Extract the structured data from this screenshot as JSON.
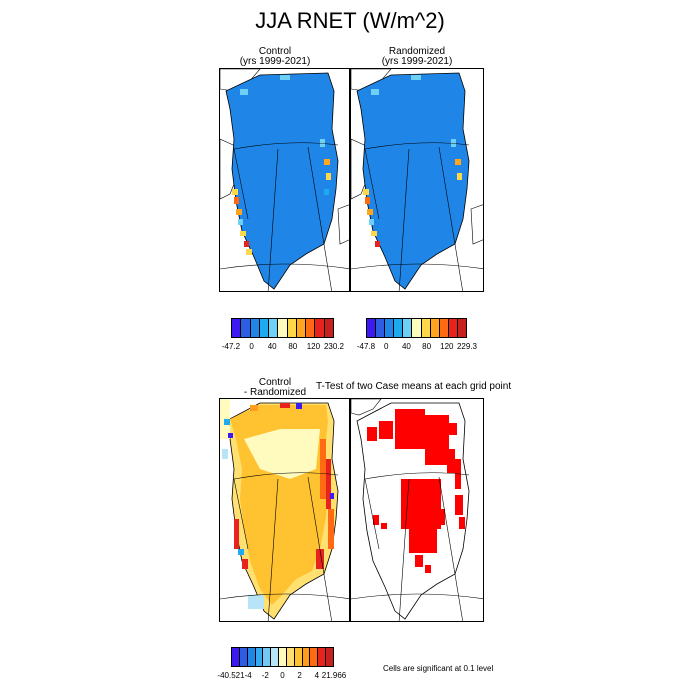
{
  "title": "JJA RNET (W/m^2)",
  "panels": {
    "control": {
      "line1": "Control",
      "line2": "(yrs 1999-2021)"
    },
    "randomized": {
      "line1": "Randomized",
      "line2": "(yrs 1999-2021)"
    },
    "diff": {
      "line1": "Control",
      "line2": "- Randomized"
    },
    "ttest": {
      "title": "T-Test of two Case means at each grid point"
    }
  },
  "colorbars": {
    "control": {
      "colors": [
        "#3d19f2",
        "#2e5ce3",
        "#1f85e6",
        "#1eaaf0",
        "#6fd0f5",
        "#fffbbf",
        "#ffd84a",
        "#ffa520",
        "#ff6a12",
        "#e8231e",
        "#c8201d"
      ],
      "ticks": [
        "-47.2",
        "0",
        "40",
        "80",
        "120",
        "230.2"
      ]
    },
    "randomized": {
      "colors": [
        "#3d19f2",
        "#2e5ce3",
        "#1f85e6",
        "#1eaaf0",
        "#6fd0f5",
        "#fffbbf",
        "#ffd84a",
        "#ffa520",
        "#ff6a12",
        "#e8231e",
        "#c8201d"
      ],
      "ticks": [
        "-47.8",
        "0",
        "40",
        "80",
        "120",
        "229.3"
      ]
    },
    "diff": {
      "colors": [
        "#3d19f2",
        "#2e5ce3",
        "#1f85e6",
        "#36a9f2",
        "#73c9f5",
        "#b7e5f7",
        "#fffbbf",
        "#ffe070",
        "#ffc230",
        "#ff9b1f",
        "#ff6a12",
        "#e8231e",
        "#c8201d"
      ],
      "ticks": [
        "-40.521",
        "-4",
        "-2",
        "0",
        "2",
        "4",
        "21.966"
      ]
    }
  },
  "note": "Cells are significant at 0.1 level",
  "colors": {
    "ice_blue": "#1f86e8",
    "diff_fill": "#ffe070",
    "significant": "#ff0000"
  }
}
